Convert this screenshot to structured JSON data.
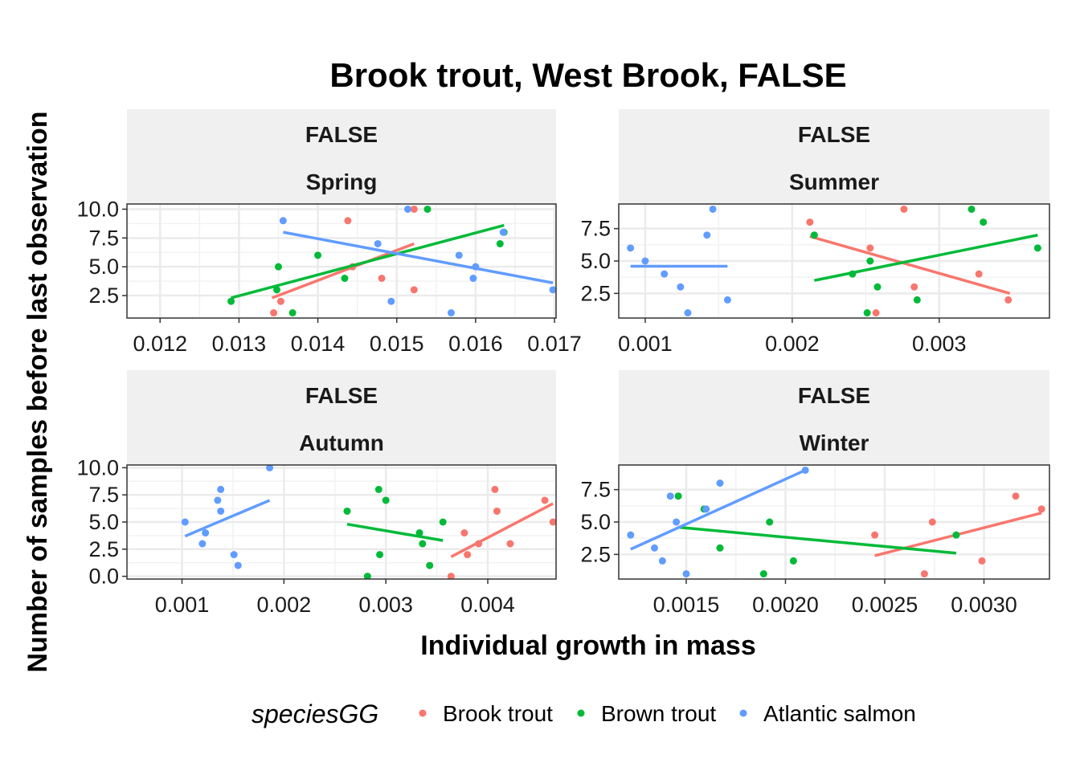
{
  "chart_data": {
    "type": "scatter",
    "title": "Brook trout, West Brook, FALSE",
    "xlabel": "Individual growth in mass",
    "ylabel": "Number of samples before last observation",
    "legend": {
      "title": "speciesGG",
      "position": "bottom",
      "entries": [
        {
          "name": "Brook trout",
          "color": "#F8766D"
        },
        {
          "name": "Brown trout",
          "color": "#00BA38"
        },
        {
          "name": "Atlantic salmon",
          "color": "#619CFF"
        }
      ]
    },
    "grid": true,
    "panels": [
      {
        "strip": [
          "FALSE",
          "Spring"
        ],
        "xlim": [
          0.01158,
          0.01702
        ],
        "ylim": [
          0.55,
          10.45
        ],
        "xticks": [
          0.012,
          0.013,
          0.014,
          0.015,
          0.016,
          0.017
        ],
        "xtick_labels": [
          "0.012",
          "0.013",
          "0.014",
          "0.015",
          "0.016",
          "0.017"
        ],
        "yticks": [
          2.5,
          5.0,
          7.5,
          10.0
        ],
        "ytick_labels": [
          "2.5",
          "5.0",
          "7.5",
          "10.0"
        ],
        "series": [
          {
            "name": "Brook trout",
            "points": [
              [
                0.01344,
                1
              ],
              [
                0.01353,
                2
              ],
              [
                0.01438,
                9
              ],
              [
                0.01444,
                5
              ],
              [
                0.01481,
                4
              ],
              [
                0.01522,
                10
              ],
              [
                0.01522,
                3
              ]
            ],
            "fit": [
              [
                0.01342,
                2.3
              ],
              [
                0.01522,
                7.0
              ]
            ]
          },
          {
            "name": "Brown trout",
            "points": [
              [
                0.0129,
                2
              ],
              [
                0.01348,
                3
              ],
              [
                0.0135,
                5
              ],
              [
                0.01368,
                1
              ],
              [
                0.014,
                6
              ],
              [
                0.01434,
                4
              ],
              [
                0.01539,
                10
              ],
              [
                0.01631,
                7
              ],
              [
                0.01636,
                8
              ]
            ],
            "fit": [
              [
                0.0129,
                2.3
              ],
              [
                0.01636,
                8.6
              ]
            ]
          },
          {
            "name": "Atlantic salmon",
            "points": [
              [
                0.01356,
                9
              ],
              [
                0.01476,
                7
              ],
              [
                0.01493,
                2
              ],
              [
                0.01514,
                10
              ],
              [
                0.01569,
                1
              ],
              [
                0.01579,
                6
              ],
              [
                0.01597,
                4
              ],
              [
                0.016,
                5
              ],
              [
                0.01635,
                8
              ],
              [
                0.01698,
                3
              ]
            ],
            "fit": [
              [
                0.01356,
                8.0
              ],
              [
                0.01698,
                3.6
              ]
            ]
          }
        ]
      },
      {
        "strip": [
          "FALSE",
          "Summer"
        ],
        "xlim": [
          0.00082,
          0.00375
        ],
        "ylim": [
          0.6,
          9.4
        ],
        "xticks": [
          0.001,
          0.002,
          0.003
        ],
        "xtick_labels": [
          "0.001",
          "0.002",
          "0.003"
        ],
        "yticks": [
          2.5,
          5.0,
          7.5
        ],
        "ytick_labels": [
          "2.5",
          "5.0",
          "7.5"
        ],
        "series": [
          {
            "name": "Brook trout",
            "points": [
              [
                0.00212,
                8
              ],
              [
                0.00253,
                6
              ],
              [
                0.00257,
                1
              ],
              [
                0.00276,
                9
              ],
              [
                0.00283,
                3
              ],
              [
                0.00327,
                4
              ],
              [
                0.00347,
                2
              ]
            ],
            "fit": [
              [
                0.00212,
                6.9
              ],
              [
                0.00348,
                2.5
              ]
            ]
          },
          {
            "name": "Brown trout",
            "points": [
              [
                0.00215,
                7
              ],
              [
                0.00241,
                4
              ],
              [
                0.00251,
                1
              ],
              [
                0.00253,
                5
              ],
              [
                0.00258,
                3
              ],
              [
                0.00285,
                2
              ],
              [
                0.00322,
                9
              ],
              [
                0.0033,
                8
              ],
              [
                0.00367,
                6
              ]
            ],
            "fit": [
              [
                0.00215,
                3.5
              ],
              [
                0.00367,
                7.0
              ]
            ]
          },
          {
            "name": "Atlantic salmon",
            "points": [
              [
                0.0009,
                6
              ],
              [
                0.001,
                5
              ],
              [
                0.00113,
                4
              ],
              [
                0.00124,
                3
              ],
              [
                0.00129,
                1
              ],
              [
                0.00142,
                7
              ],
              [
                0.00146,
                9
              ],
              [
                0.00156,
                2
              ]
            ],
            "fit": [
              [
                0.0009,
                4.6
              ],
              [
                0.00156,
                4.6
              ]
            ]
          }
        ]
      },
      {
        "strip": [
          "FALSE",
          "Autumn"
        ],
        "xlim": [
          0.00046,
          0.00467
        ],
        "ylim": [
          -0.25,
          10.25
        ],
        "xticks": [
          0.001,
          0.002,
          0.003,
          0.004
        ],
        "xtick_labels": [
          "0.001",
          "0.002",
          "0.003",
          "0.004"
        ],
        "yticks": [
          0.0,
          2.5,
          5.0,
          7.5,
          10.0
        ],
        "ytick_labels": [
          "0.0",
          "2.5",
          "5.0",
          "7.5",
          "10.0"
        ],
        "series": [
          {
            "name": "Brook trout",
            "points": [
              [
                0.00364,
                0
              ],
              [
                0.00377,
                4
              ],
              [
                0.0038,
                2
              ],
              [
                0.00391,
                3
              ],
              [
                0.00407,
                8
              ],
              [
                0.00409,
                6
              ],
              [
                0.00422,
                3
              ],
              [
                0.00456,
                7
              ],
              [
                0.00464,
                5
              ]
            ],
            "fit": [
              [
                0.00364,
                1.8
              ],
              [
                0.00464,
                6.7
              ]
            ]
          },
          {
            "name": "Brown trout",
            "points": [
              [
                0.00262,
                6
              ],
              [
                0.00282,
                0
              ],
              [
                0.00293,
                8
              ],
              [
                0.00294,
                2
              ],
              [
                0.003,
                7
              ],
              [
                0.00333,
                4
              ],
              [
                0.00336,
                3
              ],
              [
                0.00343,
                1
              ],
              [
                0.00356,
                5
              ]
            ],
            "fit": [
              [
                0.00262,
                4.8
              ],
              [
                0.00356,
                3.3
              ]
            ]
          },
          {
            "name": "Atlantic salmon",
            "points": [
              [
                0.00103,
                5
              ],
              [
                0.0012,
                3
              ],
              [
                0.00123,
                4
              ],
              [
                0.00135,
                7
              ],
              [
                0.00138,
                8
              ],
              [
                0.00138,
                6
              ],
              [
                0.00151,
                2
              ],
              [
                0.00155,
                1
              ],
              [
                0.00186,
                10
              ]
            ],
            "fit": [
              [
                0.00103,
                3.7
              ],
              [
                0.00186,
                7.0
              ]
            ]
          }
        ]
      },
      {
        "strip": [
          "FALSE",
          "Winter"
        ],
        "xlim": [
          0.00116,
          0.00333
        ],
        "ylim": [
          0.6,
          9.4
        ],
        "xticks": [
          0.0015,
          0.002,
          0.0025,
          0.003
        ],
        "xtick_labels": [
          "0.0015",
          "0.0020",
          "0.0025",
          "0.0030"
        ],
        "yticks": [
          2.5,
          5.0,
          7.5
        ],
        "ytick_labels": [
          "2.5",
          "5.0",
          "7.5"
        ],
        "series": [
          {
            "name": "Brook trout",
            "points": [
              [
                0.00245,
                4
              ],
              [
                0.0027,
                1
              ],
              [
                0.00274,
                5
              ],
              [
                0.00299,
                2
              ],
              [
                0.00316,
                7
              ],
              [
                0.00329,
                6
              ]
            ],
            "fit": [
              [
                0.00245,
                2.4
              ],
              [
                0.00329,
                5.7
              ]
            ]
          },
          {
            "name": "Brown trout",
            "points": [
              [
                0.00146,
                7
              ],
              [
                0.00159,
                6
              ],
              [
                0.00167,
                3
              ],
              [
                0.00189,
                1
              ],
              [
                0.00192,
                5
              ],
              [
                0.00204,
                2
              ],
              [
                0.00286,
                4
              ]
            ],
            "fit": [
              [
                0.00146,
                4.6
              ],
              [
                0.00286,
                2.6
              ]
            ]
          },
          {
            "name": "Atlantic salmon",
            "points": [
              [
                0.00122,
                4
              ],
              [
                0.00134,
                3
              ],
              [
                0.00138,
                2
              ],
              [
                0.00142,
                7
              ],
              [
                0.00145,
                5
              ],
              [
                0.0015,
                1
              ],
              [
                0.0016,
                6
              ],
              [
                0.00167,
                8
              ],
              [
                0.0021,
                9
              ]
            ],
            "fit": [
              [
                0.00122,
                2.9
              ],
              [
                0.0021,
                9.0
              ]
            ]
          }
        ]
      }
    ]
  }
}
